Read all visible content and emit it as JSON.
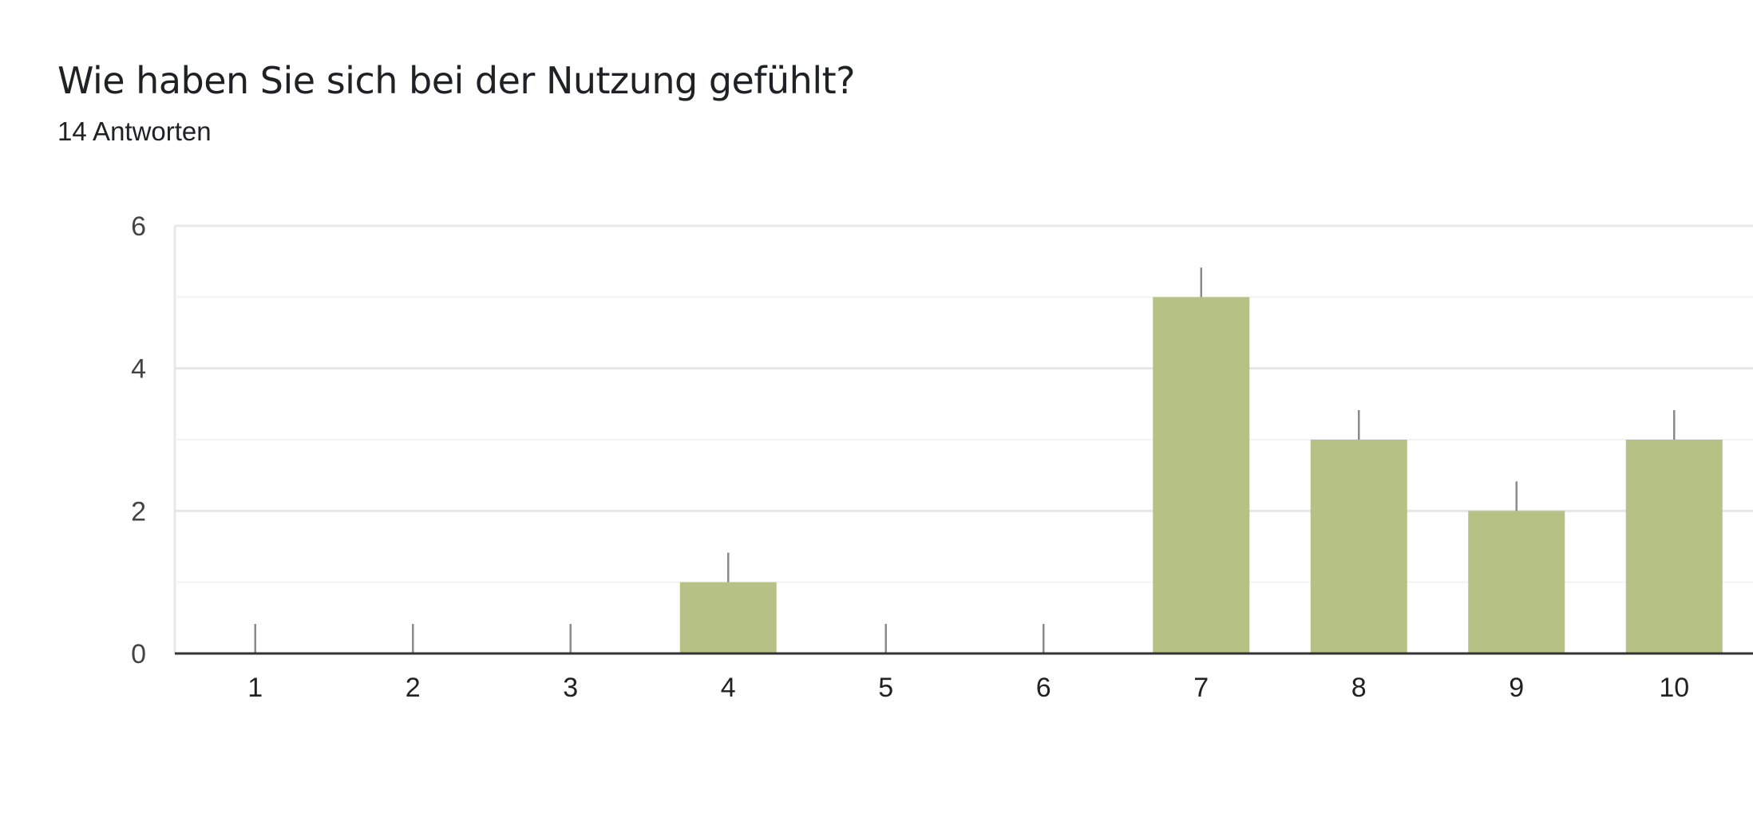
{
  "header": {
    "title": "Wie haben Sie sich bei der Nutzung gefühlt?",
    "subtitle": "14 Antworten"
  },
  "chart_data": {
    "type": "bar",
    "categories": [
      "1",
      "2",
      "3",
      "4",
      "5",
      "6",
      "7",
      "8",
      "9",
      "10"
    ],
    "values": [
      0,
      0,
      0,
      1,
      0,
      0,
      5,
      3,
      2,
      3
    ],
    "ylim": [
      0,
      6
    ],
    "yticks": [
      0,
      2,
      4,
      6
    ],
    "grid": true,
    "bar_color": "#b5c185"
  }
}
